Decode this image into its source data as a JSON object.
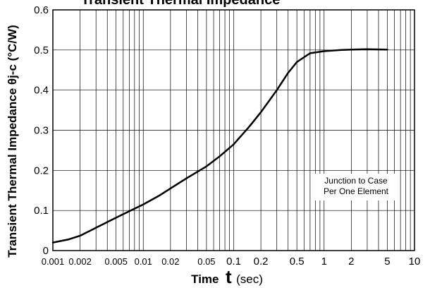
{
  "chart_data": {
    "type": "line",
    "title": "Transient Thermal Impedance",
    "xlabel_prefix": "Time",
    "xlabel_symbol": "t",
    "xlabel_unit": "(sec)",
    "ylabel": "Transient Thermal Impedance θj-c (°C/W)",
    "x_scale": "log",
    "xlim": [
      0.001,
      10
    ],
    "ylim": [
      0,
      0.6
    ],
    "grid": true,
    "x_ticks": [
      {
        "value": 0.001,
        "label": "0.001"
      },
      {
        "value": 0.002,
        "label": "0.002"
      },
      {
        "value": 0.005,
        "label": "0.005"
      },
      {
        "value": 0.01,
        "label": "0.01"
      },
      {
        "value": 0.02,
        "label": "0.02"
      },
      {
        "value": 0.05,
        "label": "0.05"
      },
      {
        "value": 0.1,
        "label": "0.1"
      },
      {
        "value": 0.2,
        "label": "0.2"
      },
      {
        "value": 0.5,
        "label": "0.5"
      },
      {
        "value": 1,
        "label": "1"
      },
      {
        "value": 2,
        "label": "2"
      },
      {
        "value": 5,
        "label": "5"
      },
      {
        "value": 10,
        "label": "10"
      }
    ],
    "y_ticks": [
      {
        "value": 0,
        "label": "0"
      },
      {
        "value": 0.1,
        "label": "0.1"
      },
      {
        "value": 0.2,
        "label": "0.2"
      },
      {
        "value": 0.3,
        "label": "0.3"
      },
      {
        "value": 0.4,
        "label": "0.4"
      },
      {
        "value": 0.5,
        "label": "0.5"
      },
      {
        "value": 0.6,
        "label": "0.6"
      }
    ],
    "annotations": [
      "Junction to Case",
      "Per One Element"
    ],
    "series": [
      {
        "x": [
          0.001,
          0.0015,
          0.002,
          0.003,
          0.005,
          0.007,
          0.01,
          0.015,
          0.02,
          0.03,
          0.05,
          0.07,
          0.1,
          0.15,
          0.2,
          0.3,
          0.4,
          0.5,
          0.7,
          1,
          1.5,
          2,
          3,
          5
        ],
        "y": [
          0.02,
          0.028,
          0.037,
          0.057,
          0.082,
          0.098,
          0.115,
          0.137,
          0.155,
          0.18,
          0.21,
          0.235,
          0.265,
          0.31,
          0.345,
          0.4,
          0.443,
          0.47,
          0.492,
          0.497,
          0.5,
          0.501,
          0.502,
          0.501
        ]
      }
    ]
  }
}
